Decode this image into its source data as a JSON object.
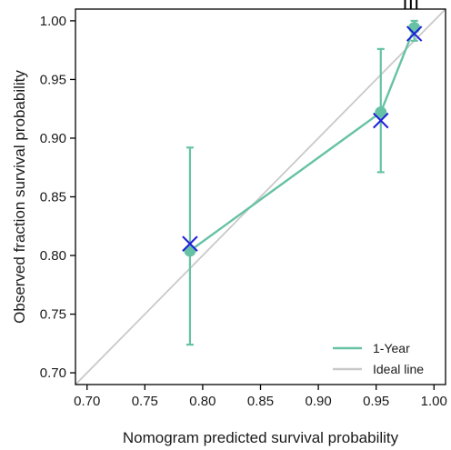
{
  "chart_data": {
    "type": "line",
    "xlabel": "Nomogram predicted survival probability",
    "ylabel": "Observed fraction survival probability",
    "xlim": [
      0.69,
      1.01
    ],
    "ylim": [
      0.69,
      1.01
    ],
    "x_ticks": [
      0.7,
      0.75,
      0.8,
      0.85,
      0.9,
      0.95,
      1.0
    ],
    "y_ticks": [
      0.7,
      0.75,
      0.8,
      0.85,
      0.9,
      0.95,
      1.0
    ],
    "x_tick_labels": [
      "0.70",
      "0.75",
      "0.80",
      "0.85",
      "0.90",
      "0.95",
      "1.00"
    ],
    "y_tick_labels": [
      "0.70",
      "0.75",
      "0.80",
      "0.85",
      "0.90",
      "0.95",
      "1.00"
    ],
    "grid": false,
    "legend_position": "bottom-right",
    "series": [
      {
        "name": "1-Year",
        "color": "#66c2a5",
        "x": [
          0.789,
          0.954,
          0.983
        ],
        "y": [
          0.804,
          0.922,
          0.994
        ],
        "error_low": [
          0.724,
          0.871,
          0.983
        ],
        "error_high": [
          0.892,
          0.976,
          1.0
        ]
      },
      {
        "name": "Ideal line",
        "color": "#c9c9c9",
        "x": [
          0.69,
          1.01
        ],
        "y": [
          0.69,
          1.01
        ]
      }
    ],
    "bias_corrected": {
      "marker": "x",
      "color": "#1f1fd8",
      "x": [
        0.789,
        0.954,
        0.983
      ],
      "y": [
        0.81,
        0.915,
        0.989
      ]
    },
    "rug_x": [
      0.975,
      0.98,
      0.985
    ],
    "rug_color": "#000000"
  }
}
